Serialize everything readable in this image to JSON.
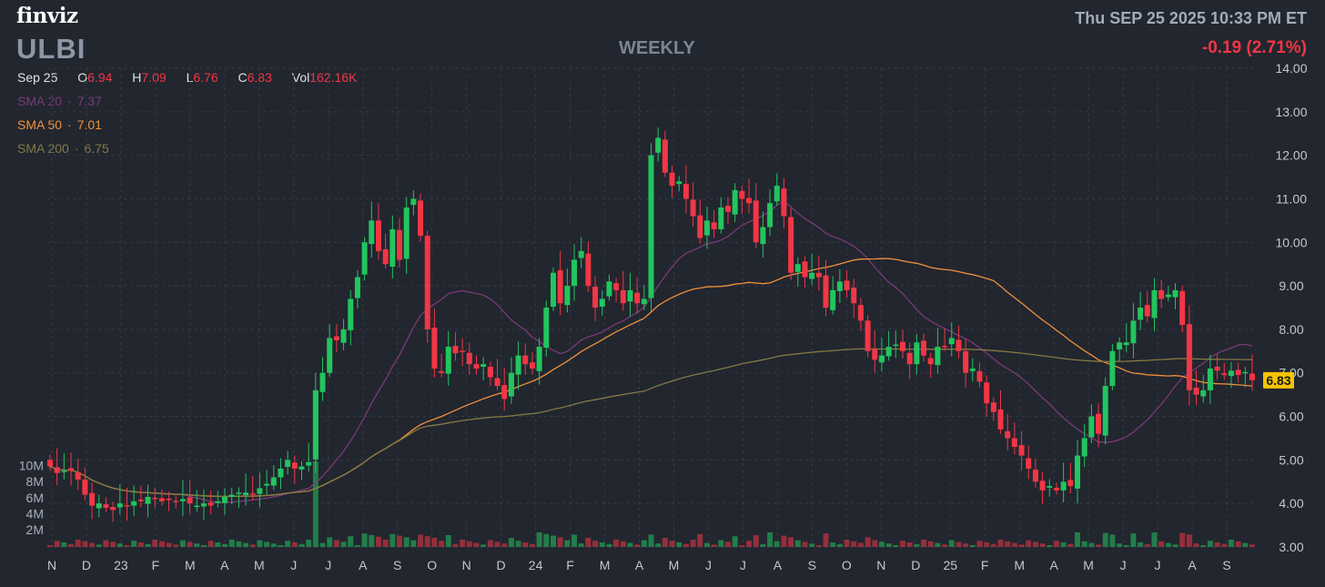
{
  "header": {
    "logo": "finviz",
    "ticker": "ULBI",
    "timeframe": "WEEKLY",
    "datetime": "Thu SEP 25 2025 10:33 PM ET",
    "change": "-0.19 (2.71%)"
  },
  "ohlc": {
    "date": "Sep 25",
    "open_label": "O",
    "open": "6.94",
    "high_label": "H",
    "high": "7.09",
    "low_label": "L",
    "low": "6.76",
    "close_label": "C",
    "close": "6.83",
    "vol_label": "Vol",
    "vol": "162.16K"
  },
  "indicators": [
    {
      "label": "SMA 20",
      "value": "7.37",
      "color": "#7a3a78"
    },
    {
      "label": "SMA 50",
      "value": "7.01",
      "color": "#f0913a"
    },
    {
      "label": "SMA 200",
      "value": "6.75",
      "color": "#847a44"
    }
  ],
  "colors": {
    "background": "#22262f",
    "up": "#22c55e",
    "down": "#f23645",
    "grid": "#353a46",
    "axis_text": "#c2c7d0",
    "last_price_bg": "#f5c400"
  },
  "chart_data": {
    "type": "candlestick",
    "interval": "weekly",
    "ylim": [
      3.0,
      14.0
    ],
    "y_ticks": [
      "3.00",
      "4.00",
      "5.00",
      "6.00",
      "7.00",
      "8.00",
      "9.00",
      "10.00",
      "11.00",
      "12.00",
      "13.00",
      "14.00"
    ],
    "x_tick_labels": [
      "N",
      "D",
      "23",
      "F",
      "M",
      "A",
      "M",
      "J",
      "J",
      "A",
      "S",
      "O",
      "N",
      "D",
      "24",
      "F",
      "M",
      "A",
      "M",
      "J",
      "J",
      "A",
      "S",
      "O",
      "N",
      "D",
      "25",
      "F",
      "M",
      "A",
      "M",
      "J",
      "J",
      "A",
      "S"
    ],
    "volume_ticks": [
      "2M",
      "4M",
      "6M",
      "8M",
      "10M"
    ],
    "last_price": "6.83",
    "closes": [
      4.85,
      4.7,
      4.75,
      4.75,
      4.55,
      4.2,
      3.95,
      4.0,
      3.9,
      3.85,
      4.0,
      3.95,
      4.05,
      4.05,
      4.15,
      4.1,
      4.05,
      4.1,
      4.05,
      4.1,
      4.0,
      3.95,
      4.0,
      3.95,
      4.05,
      4.15,
      4.2,
      4.25,
      4.25,
      4.2,
      4.35,
      4.45,
      4.6,
      4.8,
      5.0,
      4.8,
      4.85,
      4.95,
      6.6,
      7.0,
      7.8,
      7.75,
      8.0,
      8.7,
      9.2,
      10.0,
      10.5,
      9.8,
      9.5,
      10.3,
      9.6,
      10.8,
      11.0,
      10.15,
      8.0,
      7.1,
      7.0,
      7.6,
      7.45,
      7.5,
      7.2,
      7.1,
      7.2,
      6.9,
      6.7,
      6.4,
      7.0,
      7.4,
      7.2,
      7.1,
      7.6,
      8.5,
      9.3,
      8.6,
      9.0,
      9.6,
      9.8,
      9.0,
      8.5,
      8.7,
      9.1,
      8.9,
      8.6,
      8.9,
      8.6,
      8.7,
      12.0,
      12.4,
      11.6,
      11.3,
      11.4,
      11.0,
      10.6,
      10.1,
      10.5,
      10.3,
      10.8,
      10.7,
      11.2,
      11.0,
      10.9,
      10.0,
      10.35,
      10.9,
      11.3,
      10.6,
      9.3,
      9.5,
      9.2,
      9.3,
      9.2,
      8.5,
      8.9,
      9.1,
      8.9,
      8.6,
      8.2,
      7.5,
      7.3,
      7.4,
      7.6,
      7.65,
      7.5,
      7.2,
      7.7,
      7.4,
      7.2,
      7.6,
      7.6,
      7.8,
      7.5,
      7.0,
      7.1,
      6.8,
      6.3,
      6.1,
      5.7,
      5.5,
      5.3,
      5.1,
      4.8,
      4.5,
      4.3,
      4.4,
      4.3,
      4.5,
      4.4,
      5.1,
      5.5,
      6.0,
      5.6,
      6.7,
      7.5,
      7.7,
      7.7,
      8.2,
      8.5,
      8.3,
      8.9,
      8.7,
      8.8,
      8.9,
      8.1,
      6.6,
      6.5,
      6.6,
      7.1,
      7.05,
      6.95,
      7.05,
      6.95,
      7.02,
      6.83
    ]
  }
}
